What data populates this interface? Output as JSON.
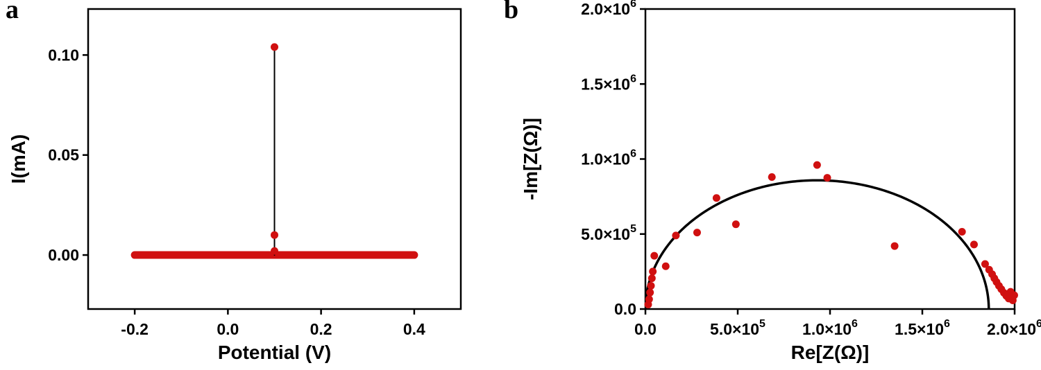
{
  "figure": {
    "background": "#ffffff",
    "frame_color": "#000000",
    "marker_color": "#d01010",
    "fit_line_color": "#000000"
  },
  "panels": [
    {
      "label": "a"
    },
    {
      "label": "b"
    }
  ],
  "chart_data": [
    {
      "type": "scatter",
      "panel": "a",
      "title": "",
      "xlabel": "Potential (V)",
      "ylabel": "I(mA)",
      "xlim": [
        -0.3,
        0.5
      ],
      "ylim": [
        -0.027,
        0.123
      ],
      "grid": false,
      "legend": "none",
      "x_ticks": [
        {
          "v": -0.2,
          "label": "-0.2"
        },
        {
          "v": 0.0,
          "label": "0.0"
        },
        {
          "v": 0.2,
          "label": "0.2"
        },
        {
          "v": 0.4,
          "label": "0.4"
        }
      ],
      "y_ticks": [
        {
          "v": 0.0,
          "label": "0.00"
        },
        {
          "v": 0.05,
          "label": "0.05"
        },
        {
          "v": 0.1,
          "label": "0.10"
        }
      ],
      "series": [
        {
          "name": "baseline-current",
          "kind": "thick-line",
          "color": "#d01010",
          "width": 11,
          "points": [
            [
              -0.2,
              0.0
            ],
            [
              0.4,
              0.0
            ]
          ]
        },
        {
          "name": "spike-connector",
          "kind": "line",
          "color": "#000000",
          "width": 2,
          "points": [
            [
              0.1,
              0.0
            ],
            [
              0.1,
              0.104
            ]
          ]
        },
        {
          "name": "spike-markers",
          "kind": "scatter",
          "color": "#d01010",
          "radius": 5.5,
          "points": [
            [
              0.1,
              0.002
            ],
            [
              0.1,
              0.01
            ],
            [
              0.1,
              0.104
            ]
          ]
        }
      ]
    },
    {
      "type": "scatter",
      "panel": "b",
      "title": "",
      "xlabel": "Re[Z(Ω)]",
      "ylabel": "-Im[Z(Ω)]",
      "xlim": [
        0,
        2000000
      ],
      "ylim": [
        0,
        2000000
      ],
      "grid": false,
      "legend": "none",
      "x_ticks": [
        {
          "v": 0,
          "label": "0.0"
        },
        {
          "v": 500000,
          "label": "5.0×10^5"
        },
        {
          "v": 1000000,
          "label": "1.0×10^6"
        },
        {
          "v": 1500000,
          "label": "1.5×10^6"
        },
        {
          "v": 2000000,
          "label": "2.0×10^6"
        }
      ],
      "y_ticks": [
        {
          "v": 0,
          "label": "0.0"
        },
        {
          "v": 500000,
          "label": "5.0×10^5"
        },
        {
          "v": 1000000,
          "label": "1.0×10^6"
        },
        {
          "v": 1500000,
          "label": "1.5×10^6"
        },
        {
          "v": 2000000,
          "label": "2.0×10^6"
        }
      ],
      "series": [
        {
          "name": "semicircle-fit",
          "kind": "ellipse-arc",
          "color": "#000000",
          "width": 3.5,
          "cx": 930000,
          "cy": 0,
          "rx": 930000,
          "ry": 858000
        },
        {
          "name": "eis-data",
          "kind": "scatter",
          "color": "#d01010",
          "radius": 5.5,
          "points": [
            [
              15000,
              30000
            ],
            [
              20000,
              65000
            ],
            [
              25000,
              110000
            ],
            [
              30000,
              155000
            ],
            [
              35000,
              205000
            ],
            [
              40000,
              250000
            ],
            [
              48000,
              355000
            ],
            [
              110000,
              285000
            ],
            [
              165000,
              490000
            ],
            [
              280000,
              510000
            ],
            [
              385000,
              740000
            ],
            [
              490000,
              565000
            ],
            [
              685000,
              880000
            ],
            [
              930000,
              960000
            ],
            [
              985000,
              875000
            ],
            [
              1350000,
              420000
            ],
            [
              1715000,
              515000
            ],
            [
              1780000,
              430000
            ],
            [
              1840000,
              300000
            ],
            [
              1862000,
              262000
            ],
            [
              1878000,
              232000
            ],
            [
              1890000,
              205000
            ],
            [
              1902000,
              180000
            ],
            [
              1915000,
              155000
            ],
            [
              1928000,
              132000
            ],
            [
              1942000,
              108000
            ],
            [
              1955000,
              88000
            ],
            [
              1968000,
              70000
            ],
            [
              1978000,
              115000
            ],
            [
              1990000,
              58000
            ],
            [
              1998000,
              92000
            ]
          ]
        }
      ]
    }
  ]
}
